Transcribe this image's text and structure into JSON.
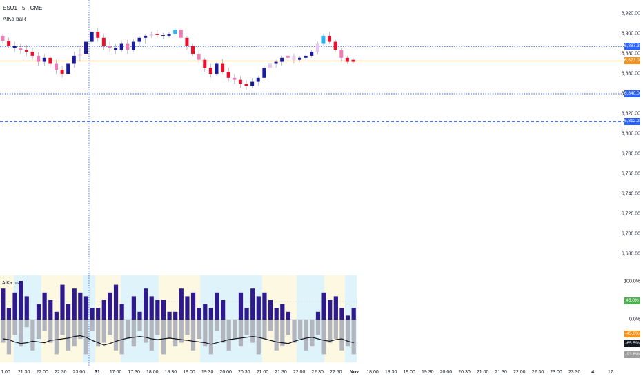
{
  "header": {
    "symbol": "ESU1 · 5 · CME",
    "indicator_top": "AlKa baR",
    "indicator_bottom": "AlKa osL"
  },
  "price_axis": {
    "ticks": [
      "6,920.00",
      "6,900.00",
      "6,880.00",
      "6,860.00",
      "6,840.00",
      "6,820.00",
      "6,800.00",
      "6,780.00",
      "6,760.00",
      "6,740.00",
      "6,720.00",
      "6,700.00",
      "6,680.00"
    ],
    "labels": [
      {
        "text": "6,887.35",
        "value": 6887.35,
        "color": "#2962ff"
      },
      {
        "text": "6,873.00",
        "value": 6873.0,
        "color": "#f7931a"
      },
      {
        "text": "6,840.00",
        "value": 6840.0,
        "color": "#2962ff"
      },
      {
        "text": "6,812.25",
        "value": 6812.25,
        "color": "#2962ff"
      }
    ]
  },
  "indicator_axis": {
    "ticks": [
      "100.0%",
      "0.0%"
    ],
    "labels": [
      {
        "text": "45.0%",
        "value": 45,
        "color": "#4caf50"
      },
      {
        "text": "-45.0%",
        "value": -45,
        "color": "#f7931a"
      },
      {
        "text": "-65.5%",
        "value": -65.5,
        "color": "#131722"
      },
      {
        "text": "-93.8%",
        "value": -93.8,
        "color": "#9e9e9e"
      }
    ]
  },
  "time_axis": {
    "ticks": [
      {
        "t": "1:00",
        "b": false
      },
      {
        "t": "21:30",
        "b": false
      },
      {
        "t": "22:00",
        "b": false
      },
      {
        "t": "22:30",
        "b": false
      },
      {
        "t": "23:00",
        "b": false
      },
      {
        "t": "31",
        "b": true
      },
      {
        "t": "17:00",
        "b": false
      },
      {
        "t": "17:30",
        "b": false
      },
      {
        "t": "18:00",
        "b": false
      },
      {
        "t": "18:30",
        "b": false
      },
      {
        "t": "19:00",
        "b": false
      },
      {
        "t": "19:30",
        "b": false
      },
      {
        "t": "20:00",
        "b": false
      },
      {
        "t": "20:30",
        "b": false
      },
      {
        "t": "21:00",
        "b": false
      },
      {
        "t": "21:30",
        "b": false
      },
      {
        "t": "22:00",
        "b": false
      },
      {
        "t": "22:30",
        "b": false
      },
      {
        "t": "22:50",
        "b": false
      },
      {
        "t": "Nov",
        "b": true
      },
      {
        "t": "18:00",
        "b": false
      },
      {
        "t": "18:30",
        "b": false
      },
      {
        "t": "19:00",
        "b": false
      },
      {
        "t": "19:30",
        "b": false
      },
      {
        "t": "20:00",
        "b": false
      },
      {
        "t": "20:30",
        "b": false
      },
      {
        "t": "21:00",
        "b": false
      },
      {
        "t": "21:30",
        "b": false
      },
      {
        "t": "22:00",
        "b": false
      },
      {
        "t": "22:30",
        "b": false
      },
      {
        "t": "23:00",
        "b": false
      },
      {
        "t": "23:30",
        "b": false
      },
      {
        "t": "4",
        "b": true
      },
      {
        "t": "17:",
        "b": false
      }
    ]
  },
  "colors": {
    "up": "#1a1a9c",
    "down": "#e8112d",
    "up_light": "#e8c8ef",
    "down_light": "#f07bb4",
    "cyan": "#29b6f6",
    "level_blue": "#2962ff",
    "level_orange": "#f7931a",
    "hist_pos": "#2e1a8c",
    "hist_neg": "#b2b5be",
    "bg_cyan": "#dff3fa",
    "bg_yellow": "#fdf8e1",
    "osc_line": "#131722"
  },
  "chart_data": [
    {
      "type": "candlestick",
      "title": "ESU1 · 5 · CME",
      "ylim": [
        6670,
        6930
      ],
      "levels": [
        6887.35,
        6873.0,
        6840.0,
        6812.25
      ],
      "candles": [
        [
          6898,
          6900,
          6890,
          6893,
          "d"
        ],
        [
          6893,
          6896,
          6886,
          6888,
          "d"
        ],
        [
          6888,
          6892,
          6882,
          6886,
          "u"
        ],
        [
          6886,
          6890,
          6880,
          6884,
          "d"
        ],
        [
          6884,
          6889,
          6878,
          6882,
          "d"
        ],
        [
          6882,
          6886,
          6874,
          6878,
          "d"
        ],
        [
          6878,
          6882,
          6868,
          6872,
          "d"
        ],
        [
          6872,
          6880,
          6868,
          6876,
          "u"
        ],
        [
          6876,
          6878,
          6866,
          6870,
          "d"
        ],
        [
          6870,
          6874,
          6860,
          6864,
          "d"
        ],
        [
          6864,
          6868,
          6856,
          6860,
          "d"
        ],
        [
          6860,
          6872,
          6858,
          6870,
          "u"
        ],
        [
          6870,
          6882,
          6866,
          6878,
          "u"
        ],
        [
          6878,
          6886,
          6872,
          6880,
          "u"
        ],
        [
          6880,
          6895,
          6878,
          6892,
          "u"
        ],
        [
          6892,
          6905,
          6890,
          6902,
          "u"
        ],
        [
          6902,
          6906,
          6892,
          6896,
          "d"
        ],
        [
          6896,
          6900,
          6884,
          6888,
          "d"
        ],
        [
          6888,
          6892,
          6882,
          6886,
          "d"
        ],
        [
          6886,
          6890,
          6880,
          6884,
          "u"
        ],
        [
          6884,
          6892,
          6882,
          6890,
          "u"
        ],
        [
          6890,
          6894,
          6880,
          6884,
          "d"
        ],
        [
          6884,
          6895,
          6882,
          6892,
          "u"
        ],
        [
          6892,
          6898,
          6888,
          6896,
          "u"
        ],
        [
          6896,
          6900,
          6890,
          6898,
          "u"
        ],
        [
          6898,
          6902,
          6896,
          6900,
          "u"
        ],
        [
          6900,
          6904,
          6896,
          6899,
          "d"
        ],
        [
          6899,
          6901,
          6895,
          6898,
          "u"
        ],
        [
          6898,
          6902,
          6896,
          6900,
          "u"
        ],
        [
          6900,
          6906,
          6896,
          6904,
          "u"
        ],
        [
          6904,
          6906,
          6894,
          6896,
          "d"
        ],
        [
          6896,
          6898,
          6884,
          6888,
          "d"
        ],
        [
          6888,
          6890,
          6878,
          6880,
          "d"
        ],
        [
          6880,
          6884,
          6870,
          6874,
          "d"
        ],
        [
          6874,
          6876,
          6862,
          6866,
          "d"
        ],
        [
          6866,
          6870,
          6856,
          6860,
          "d"
        ],
        [
          6860,
          6872,
          6858,
          6870,
          "u"
        ],
        [
          6870,
          6875,
          6860,
          6862,
          "d"
        ],
        [
          6862,
          6866,
          6852,
          6856,
          "d"
        ],
        [
          6856,
          6860,
          6850,
          6854,
          "d"
        ],
        [
          6854,
          6858,
          6846,
          6850,
          "d"
        ],
        [
          6850,
          6854,
          6844,
          6848,
          "d"
        ],
        [
          6848,
          6856,
          6846,
          6852,
          "u"
        ],
        [
          6852,
          6858,
          6848,
          6856,
          "u"
        ],
        [
          6856,
          6868,
          6854,
          6866,
          "u"
        ],
        [
          6866,
          6872,
          6862,
          6870,
          "u"
        ],
        [
          6870,
          6874,
          6866,
          6872,
          "u"
        ],
        [
          6872,
          6878,
          6868,
          6876,
          "u"
        ],
        [
          6876,
          6880,
          6872,
          6878,
          "d"
        ],
        [
          6878,
          6880,
          6870,
          6874,
          "u"
        ],
        [
          6874,
          6878,
          6872,
          6876,
          "u"
        ],
        [
          6876,
          6880,
          6874,
          6878,
          "u"
        ],
        [
          6878,
          6884,
          6876,
          6882,
          "u"
        ],
        [
          6882,
          6892,
          6880,
          6890,
          "u"
        ],
        [
          6890,
          6900,
          6888,
          6898,
          "u"
        ],
        [
          6898,
          6902,
          6890,
          6892,
          "d"
        ],
        [
          6892,
          6894,
          6882,
          6884,
          "d"
        ],
        [
          6884,
          6886,
          6872,
          6876,
          "d"
        ],
        [
          6876,
          6878,
          6870,
          6872,
          "d"
        ],
        [
          6872,
          6876,
          6870,
          6874,
          "d"
        ]
      ]
    },
    {
      "type": "bar",
      "title": "AlKa osL",
      "ylim": [
        -100,
        100
      ],
      "histogram": [
        80,
        30,
        70,
        100,
        60,
        0,
        40,
        70,
        50,
        20,
        90,
        40,
        80,
        70,
        60,
        30,
        30,
        50,
        70,
        90,
        40,
        0,
        60,
        20,
        80,
        60,
        50,
        50,
        20,
        20,
        80,
        60,
        70,
        30,
        40,
        30,
        70,
        50,
        0,
        0,
        70,
        30,
        80,
        60,
        70,
        50,
        30,
        40,
        20,
        0,
        0,
        0,
        0,
        20,
        70,
        50,
        60,
        30,
        10,
        30
      ],
      "neg_histogram": [
        -60,
        -90,
        -40,
        -70,
        -20,
        -80,
        -50,
        -30,
        -60,
        -90,
        -40,
        -80,
        -70,
        -50,
        -90,
        -30,
        -70,
        -60,
        -40,
        -80,
        -90,
        -50,
        -70,
        -30,
        -60,
        -80,
        -40,
        -90,
        -50,
        -70,
        -60,
        -40,
        -80,
        -50,
        -70,
        -90,
        -30,
        -60,
        -80,
        -50,
        -70,
        -40,
        -60,
        -90,
        -50,
        -30,
        -80,
        -70,
        -40,
        -60,
        -50,
        -80,
        -70,
        -40,
        -90,
        -60,
        -50,
        -80,
        -70,
        -90
      ],
      "osc_line": [
        -50,
        -52,
        -58,
        -62,
        -60,
        -56,
        -58,
        -60,
        -54,
        -52,
        -50,
        -48,
        -44,
        -42,
        -46,
        -54,
        -60,
        -66,
        -62,
        -56,
        -52,
        -48,
        -46,
        -44,
        -46,
        -50,
        -52,
        -50,
        -48,
        -50,
        -52,
        -54,
        -56,
        -58,
        -60,
        -64,
        -60,
        -56,
        -52,
        -50,
        -48,
        -46,
        -44,
        -46,
        -50,
        -54,
        -58,
        -60,
        -62,
        -56,
        -52,
        -48,
        -46,
        -50,
        -54,
        -56,
        -52,
        -50,
        -56,
        -60
      ]
    }
  ]
}
